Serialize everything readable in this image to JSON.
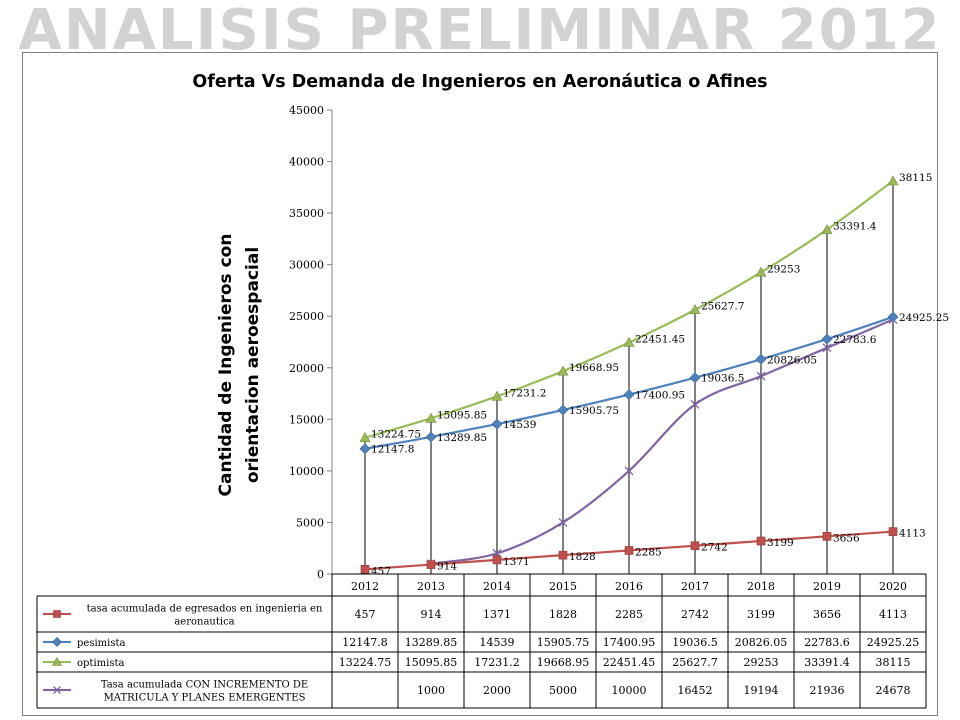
{
  "slide": {
    "title": "ANALISIS PRELIMINAR 2012"
  },
  "chart_data": {
    "type": "line",
    "title": "Oferta Vs Demanda de Ingenieros en Aeronáutica o Afines",
    "ylabel_lines": [
      "Cantidad de Ingenieros con",
      "orientacion aeroespacial"
    ],
    "xlabel": "",
    "categories": [
      "2012",
      "2013",
      "2014",
      "2015",
      "2016",
      "2017",
      "2018",
      "2019",
      "2020"
    ],
    "ylim": [
      0,
      45000
    ],
    "yticks": [
      0,
      5000,
      10000,
      15000,
      20000,
      25000,
      30000,
      35000,
      40000,
      45000
    ],
    "ytick_labels": [
      "0",
      "5000",
      "10000",
      "15000",
      "20000",
      "25000",
      "30000",
      "35000",
      "40000",
      "45000"
    ],
    "grid": false,
    "legend": "data-table",
    "series": [
      {
        "name": "tasa acumulada de egresados en ingenieria en aeronautica",
        "name_lines": [
          "tasa acumulada de egresados en ingenieria en",
          "aeronautica"
        ],
        "color": "#c0504d",
        "marker": "square",
        "values": [
          457,
          914,
          1371,
          1828,
          2285,
          2742,
          3199,
          3656,
          4113
        ],
        "labels": [
          "457",
          "914",
          "1371",
          "1828",
          "2285",
          "2742",
          "3199",
          "3656",
          "4113"
        ],
        "table": [
          "457",
          "914",
          "1371",
          "1828",
          "2285",
          "2742",
          "3199",
          "3656",
          "4113"
        ]
      },
      {
        "name": "pesimista",
        "name_lines": [
          "pesimista"
        ],
        "color": "#4f81bd",
        "marker": "diamond",
        "values": [
          12147.8,
          13289.85,
          14539,
          15905.75,
          17400.95,
          19036.5,
          20826.05,
          22783.6,
          24925.25
        ],
        "labels": [
          "12147.8",
          "13289.85",
          "14539",
          "15905.75",
          "17400.95",
          "19036.5",
          "20826.05",
          "22783.6",
          "24925.25"
        ],
        "table": [
          "12147.8",
          "13289.85",
          "14539",
          "15905.75",
          "17400.95",
          "19036.5",
          "20826.05",
          "22783.6",
          "24925.25"
        ]
      },
      {
        "name": "optimista",
        "name_lines": [
          "optimista"
        ],
        "color": "#9bbb59",
        "marker": "triangle",
        "values": [
          13224.75,
          15095.85,
          17231.2,
          19668.95,
          22451.45,
          25627.7,
          29253,
          33391.4,
          38115
        ],
        "labels": [
          "13224.75",
          "15095.85",
          "17231.2",
          "19668.95",
          "22451.45",
          "25627.7",
          "29253",
          "33391.4",
          "38115"
        ],
        "table": [
          "13224.75",
          "15095.85",
          "17231.2",
          "19668.95",
          "22451.45",
          "25627.7",
          "29253",
          "33391.4",
          "38115"
        ]
      },
      {
        "name": "Tasa acumulada CON INCREMENTO DE MATRICULA Y PLANES EMERGENTES",
        "name_lines": [
          "Tasa acumulada CON INCREMENTO DE",
          "MATRICULA Y PLANES EMERGENTES"
        ],
        "color": "#8064a2",
        "marker": "x",
        "values": [
          null,
          1000,
          2000,
          5000,
          10000,
          16452,
          19194,
          21936,
          24678
        ],
        "labels": [],
        "table": [
          "",
          "1000",
          "2000",
          "5000",
          "10000",
          "16452",
          "19194",
          "21936",
          "24678"
        ]
      }
    ]
  }
}
